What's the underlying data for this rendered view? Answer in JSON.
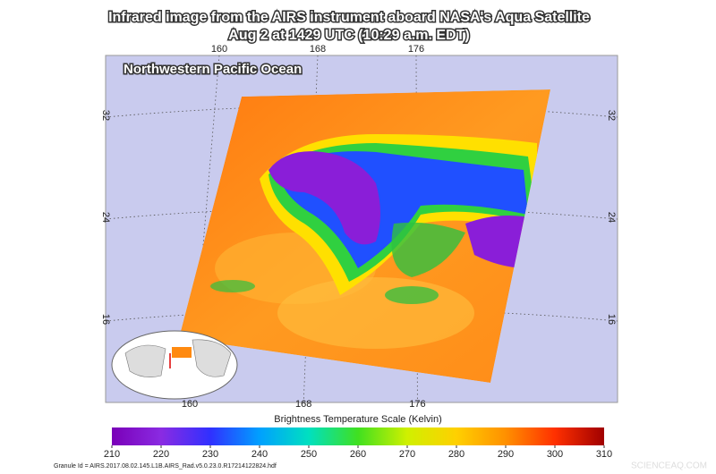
{
  "header": {
    "title_line1": "Infrared image from the AIRS instrument aboard NASA's Aqua Satellite",
    "title_line2": "Aug 2 at 1429 UTC (10:29 a.m. EDT)"
  },
  "map": {
    "region_label": "Northwestern Pacific Ocean",
    "lon_ticks": [
      160,
      168,
      176
    ],
    "lat_ticks": [
      32,
      24,
      16
    ]
  },
  "colorbar": {
    "title": "Brightness Temperature Scale (Kelvin)",
    "lim": [
      210,
      310
    ],
    "ticks": [
      210,
      220,
      230,
      240,
      250,
      260,
      270,
      280,
      290,
      300,
      310
    ]
  },
  "footer": {
    "granule_id": "Granule Id = AIRS.2017.08.02.145.L1B.AIRS_Rad.v5.0.23.0.R17214122824.hdf",
    "watermark": "SCIENCEAQ.COM"
  }
}
